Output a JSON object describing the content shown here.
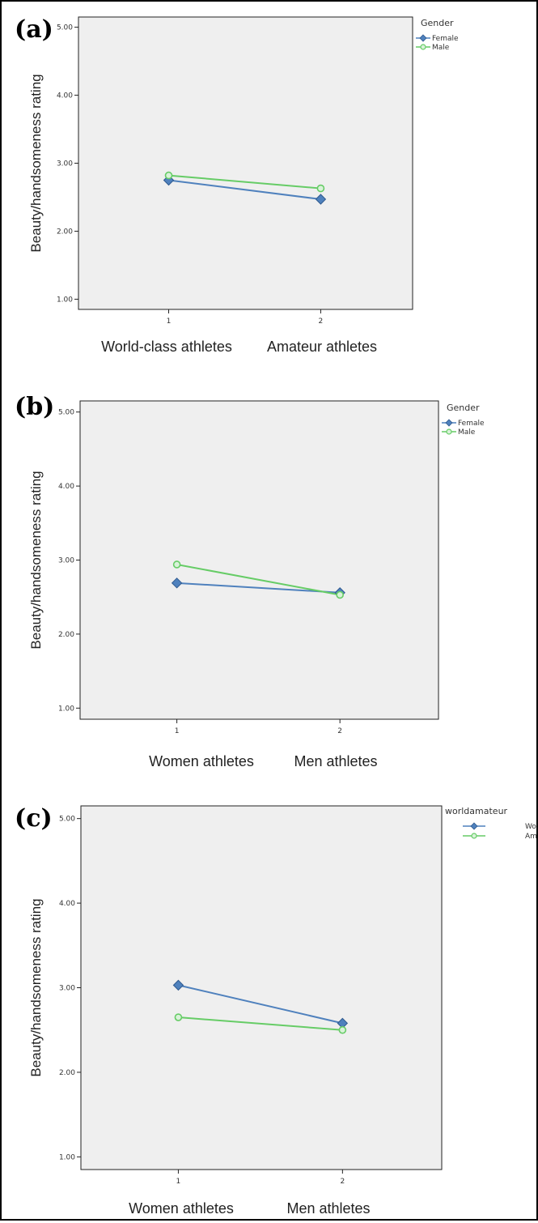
{
  "chart_data": [
    {
      "type": "line",
      "panel_label": "(a)",
      "ylabel": "Beauty/handsomeness rating",
      "ylim": [
        0.85,
        5.15
      ],
      "yticks": [
        "1.00",
        "2.00",
        "3.00",
        "4.00",
        "5.00"
      ],
      "x": [
        1,
        2
      ],
      "xtick_labels": [
        "1",
        "2"
      ],
      "category_labels": [
        "World-class athletes",
        "Amateur athletes"
      ],
      "legend_title": "Gender",
      "legend_position": "top-right",
      "grid": false,
      "series": [
        {
          "name": "Female",
          "marker": "diamond",
          "color": "#4f81bd",
          "values": [
            2.75,
            2.47
          ]
        },
        {
          "name": "Male",
          "marker": "circle",
          "color": "#66cc66",
          "values": [
            2.82,
            2.63
          ]
        }
      ]
    },
    {
      "type": "line",
      "panel_label": "(b)",
      "ylabel": "Beauty/handsomeness rating",
      "ylim": [
        0.85,
        5.15
      ],
      "yticks": [
        "1.00",
        "2.00",
        "3.00",
        "4.00",
        "5.00"
      ],
      "x": [
        1,
        2
      ],
      "xtick_labels": [
        "1",
        "2"
      ],
      "category_labels": [
        "Women athletes",
        "Men athletes"
      ],
      "legend_title": "Gender",
      "legend_position": "top-right",
      "grid": false,
      "series": [
        {
          "name": "Female",
          "marker": "diamond",
          "color": "#4f81bd",
          "values": [
            2.69,
            2.56
          ]
        },
        {
          "name": "Male",
          "marker": "circle",
          "color": "#66cc66",
          "values": [
            2.94,
            2.53
          ]
        }
      ]
    },
    {
      "type": "line",
      "panel_label": "(c)",
      "ylabel": "Beauty/handsomeness rating",
      "ylim": [
        0.85,
        5.15
      ],
      "yticks": [
        "1.00",
        "2.00",
        "3.00",
        "4.00",
        "5.00"
      ],
      "x": [
        1,
        2
      ],
      "xtick_labels": [
        "1",
        "2"
      ],
      "category_labels": [
        "Women athletes",
        "Men athletes"
      ],
      "legend_title": "worldamateur",
      "legend_position": "top-right",
      "grid": false,
      "series": [
        {
          "name": "World-class",
          "marker": "diamond",
          "color": "#4f81bd",
          "values": [
            3.03,
            2.58
          ]
        },
        {
          "name": "Amateur",
          "marker": "circle",
          "color": "#66cc66",
          "values": [
            2.65,
            2.5
          ]
        }
      ]
    }
  ]
}
